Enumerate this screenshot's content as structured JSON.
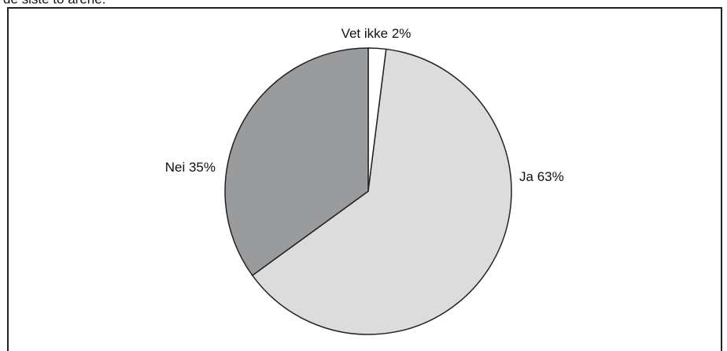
{
  "chart_data": {
    "type": "pie",
    "title": "de siste to årene.",
    "categories": [
      "Vet ikke",
      "Ja",
      "Nei"
    ],
    "values": [
      2,
      63,
      35
    ],
    "value_labels": [
      "2%",
      "63%",
      "35%"
    ],
    "colors": [
      "#ffffff",
      "#dcdcdd",
      "#9a9b9d"
    ]
  }
}
